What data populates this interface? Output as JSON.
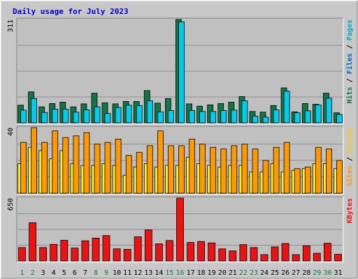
{
  "chart_data": {
    "type": "bar",
    "title": "Daily usage for July 2023",
    "categories": [
      "1",
      "2",
      "3",
      "4",
      "5",
      "6",
      "7",
      "8",
      "9",
      "10",
      "11",
      "12",
      "13",
      "14",
      "15",
      "16",
      "17",
      "18",
      "19",
      "20",
      "21",
      "22",
      "23",
      "24",
      "25",
      "26",
      "27",
      "28",
      "29",
      "30",
      "31"
    ],
    "weekend_days": [
      "1",
      "2",
      "8",
      "9",
      "15",
      "16",
      "22",
      "23",
      "29",
      "30"
    ],
    "colors": {
      "title": "#0000cc",
      "panel_bg": "#c0c0c0",
      "grid": "#909090",
      "hits": "#117744",
      "files": "#00ccee",
      "pages": "#00aacc",
      "sites": "#ffee22",
      "visits": "#ff9900",
      "kbytes": "#ee1111",
      "weekday_label": "#000000",
      "weekend_label": "#117744"
    },
    "panels": [
      {
        "axis_max": "311",
        "ylim": [
          0,
          311
        ],
        "legend": [
          {
            "text": "Hits",
            "color": "#117744"
          },
          {
            "text": "Files",
            "color": "#0066cc"
          },
          {
            "text": "Pages",
            "color": "#00aacc"
          }
        ],
        "series": [
          {
            "name": "Hits",
            "color": "#117744",
            "values": [
              53,
              93,
              48,
              58,
              62,
              48,
              57,
              89,
              60,
              57,
              64,
              64,
              97,
              59,
              73,
              311,
              57,
              50,
              54,
              58,
              62,
              79,
              34,
              32,
              52,
              105,
              33,
              58,
              56,
              89,
              30
            ]
          },
          {
            "name": "Files",
            "color": "#00ccee",
            "values": [
              38,
              73,
              31,
              41,
              41,
              32,
              39,
              48,
              28,
              46,
              53,
              52,
              66,
              33,
              37,
              304,
              37,
              34,
              34,
              37,
              38,
              66,
              20,
              17,
              39,
              95,
              30,
              36,
              54,
              74,
              25
            ]
          }
        ]
      },
      {
        "axis_max": "40",
        "ylim": [
          0,
          40
        ],
        "legend": [
          {
            "text": "Sites",
            "color": "#ff9900"
          },
          {
            "text": "Visits",
            "color": "#ffcc00"
          }
        ],
        "series": [
          {
            "name": "Sites",
            "color": "#ffee22",
            "values": [
              18,
              28,
              26,
              21,
              26,
              18,
              17,
              17,
              18,
              17,
              11,
              16,
              18,
              16,
              17,
              17,
              22,
              18,
              17,
              16,
              17,
              17,
              13,
              13,
              18,
              13,
              14,
              15,
              18,
              18,
              15
            ]
          },
          {
            "name": "Visits",
            "color": "#ff9900",
            "values": [
              31,
              40,
              31,
              38,
              34,
              35,
              37,
              30,
              31,
              33,
              23,
              25,
              29,
              38,
              29,
              29,
              33,
              30,
              28,
              27,
              29,
              30,
              27,
              20,
              28,
              31,
              15,
              16,
              28,
              27,
              20
            ]
          }
        ]
      },
      {
        "axis_max": "650",
        "ylim": [
          0,
          650
        ],
        "legend": [
          {
            "text": "KBytes",
            "color": "#ee1111"
          }
        ],
        "series": [
          {
            "name": "KBytes",
            "color": "#ee1111",
            "values": [
              138,
              395,
              138,
              171,
              214,
              133,
              208,
              236,
              262,
              125,
              120,
              249,
              320,
              176,
              211,
              650,
              191,
              201,
              186,
              124,
              103,
              168,
              138,
              65,
              145,
              180,
              64,
              156,
              79,
              183,
              68
            ]
          }
        ]
      }
    ]
  }
}
